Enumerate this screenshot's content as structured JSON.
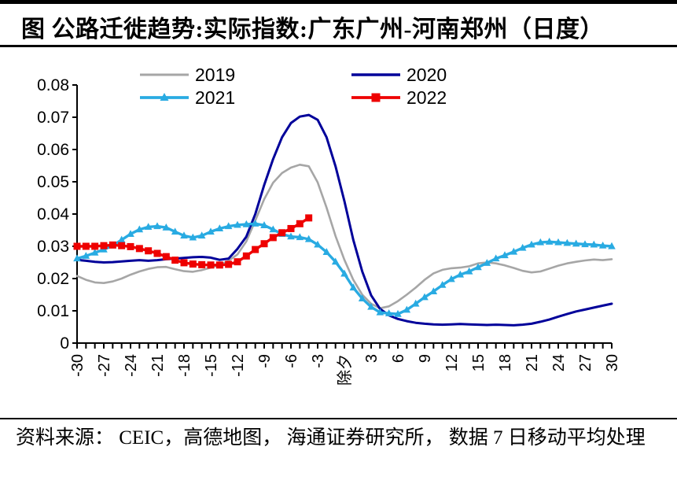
{
  "title": "图 公路迁徙趋势:实际指数:广东广州-河南郑州（日度）",
  "source": "资料来源： CEIC，高德地图， 海通证券研究所， 数据 7 日移动平均处理",
  "chart_data": {
    "type": "line",
    "title": "图 公路迁徙趋势:实际指数:广东广州-河南郑州（日度）",
    "grid": false,
    "legend_position": "top-inside-two-columns",
    "ylim": [
      0,
      0.08
    ],
    "y_ticks": [
      {
        "value": 0,
        "label": "0"
      },
      {
        "value": 0.01,
        "label": "0.01"
      },
      {
        "value": 0.02,
        "label": "0.02"
      },
      {
        "value": 0.03,
        "label": "0.03"
      },
      {
        "value": 0.04,
        "label": "0.04"
      },
      {
        "value": 0.05,
        "label": "0.05"
      },
      {
        "value": 0.06,
        "label": "0.06"
      },
      {
        "value": 0.07,
        "label": "0.07"
      },
      {
        "value": 0.08,
        "label": "0.08"
      }
    ],
    "x_tick_step": 1,
    "x_zero_label": "除夕",
    "x_labels": [
      {
        "value": -30,
        "text": "-30"
      },
      {
        "value": -27,
        "text": "-27"
      },
      {
        "value": -24,
        "text": "-24"
      },
      {
        "value": -21,
        "text": "-21"
      },
      {
        "value": -18,
        "text": "-18"
      },
      {
        "value": -15,
        "text": "-15"
      },
      {
        "value": -12,
        "text": "-12"
      },
      {
        "value": -9,
        "text": "-9"
      },
      {
        "value": -6,
        "text": "-6"
      },
      {
        "value": -3,
        "text": "-3"
      },
      {
        "value": 0,
        "text": "除夕"
      },
      {
        "value": 3,
        "text": "3"
      },
      {
        "value": 6,
        "text": "6"
      },
      {
        "value": 9,
        "text": "9"
      },
      {
        "value": 12,
        "text": "12"
      },
      {
        "value": 15,
        "text": "15"
      },
      {
        "value": 18,
        "text": "18"
      },
      {
        "value": 21,
        "text": "21"
      },
      {
        "value": 24,
        "text": "24"
      },
      {
        "value": 27,
        "text": "27"
      },
      {
        "value": 30,
        "text": "30"
      }
    ],
    "x": [
      -30,
      -29,
      -28,
      -27,
      -26,
      -25,
      -24,
      -23,
      -22,
      -21,
      -20,
      -19,
      -18,
      -17,
      -16,
      -15,
      -14,
      -13,
      -12,
      -11,
      -10,
      -9,
      -8,
      -7,
      -6,
      -5,
      -4,
      -3,
      -2,
      -1,
      0,
      1,
      2,
      3,
      4,
      5,
      6,
      7,
      8,
      9,
      10,
      11,
      12,
      13,
      14,
      15,
      16,
      17,
      18,
      19,
      20,
      21,
      22,
      23,
      24,
      25,
      26,
      27,
      28,
      29,
      30
    ],
    "series": [
      {
        "name": "2019",
        "color": "#a6a6a6",
        "marker": "none",
        "line_width": 2.6,
        "values": [
          0.0208,
          0.0196,
          0.0188,
          0.0186,
          0.0191,
          0.02,
          0.0212,
          0.0222,
          0.023,
          0.0235,
          0.0236,
          0.0229,
          0.0223,
          0.0221,
          0.0226,
          0.0234,
          0.0243,
          0.0255,
          0.0275,
          0.0315,
          0.038,
          0.0446,
          0.0497,
          0.0527,
          0.0544,
          0.0553,
          0.0548,
          0.0498,
          0.042,
          0.0332,
          0.0258,
          0.0196,
          0.015,
          0.0122,
          0.0108,
          0.0114,
          0.013,
          0.015,
          0.0172,
          0.0196,
          0.0216,
          0.0227,
          0.0232,
          0.0234,
          0.0238,
          0.0247,
          0.025,
          0.0247,
          0.0241,
          0.0233,
          0.0224,
          0.0219,
          0.0222,
          0.0231,
          0.024,
          0.0247,
          0.0252,
          0.0256,
          0.0259,
          0.0257,
          0.026
        ]
      },
      {
        "name": "2020",
        "color": "#00009a",
        "marker": "none",
        "line_width": 3,
        "values": [
          0.0258,
          0.0255,
          0.0252,
          0.025,
          0.0251,
          0.0253,
          0.0255,
          0.0257,
          0.0255,
          0.0257,
          0.026,
          0.0262,
          0.0264,
          0.0266,
          0.0267,
          0.0265,
          0.0258,
          0.0262,
          0.0292,
          0.033,
          0.04,
          0.049,
          0.057,
          0.0638,
          0.0682,
          0.0702,
          0.0707,
          0.0692,
          0.0638,
          0.0548,
          0.044,
          0.032,
          0.0222,
          0.0148,
          0.0106,
          0.0086,
          0.0075,
          0.0068,
          0.0063,
          0.006,
          0.0058,
          0.0057,
          0.0058,
          0.0059,
          0.0058,
          0.0057,
          0.0056,
          0.0057,
          0.0056,
          0.0055,
          0.0057,
          0.006,
          0.0066,
          0.0073,
          0.0082,
          0.009,
          0.0098,
          0.0104,
          0.011,
          0.0116,
          0.0122
        ]
      },
      {
        "name": "2021",
        "color": "#29abe2",
        "marker": "triangle",
        "line_width": 3.4,
        "values": [
          0.0262,
          0.027,
          0.028,
          0.029,
          0.0302,
          0.032,
          0.0338,
          0.0352,
          0.036,
          0.0362,
          0.0358,
          0.0345,
          0.0333,
          0.0327,
          0.0333,
          0.0345,
          0.0355,
          0.0362,
          0.0366,
          0.0368,
          0.037,
          0.0365,
          0.0352,
          0.0338,
          0.033,
          0.0328,
          0.0322,
          0.0305,
          0.0282,
          0.0252,
          0.0215,
          0.0172,
          0.0138,
          0.0112,
          0.0095,
          0.0092,
          0.009,
          0.0103,
          0.0122,
          0.0142,
          0.016,
          0.018,
          0.0198,
          0.0212,
          0.0222,
          0.0235,
          0.0248,
          0.0262,
          0.0272,
          0.0283,
          0.0295,
          0.0305,
          0.0312,
          0.0314,
          0.0312,
          0.031,
          0.0308,
          0.0306,
          0.0305,
          0.0302,
          0.03
        ]
      },
      {
        "name": "2022",
        "color": "#ee0000",
        "marker": "square",
        "line_width": 3.4,
        "values": [
          0.03,
          0.03,
          0.03,
          0.0302,
          0.0304,
          0.0302,
          0.0299,
          0.0293,
          0.0286,
          0.0278,
          0.0268,
          0.0257,
          0.0249,
          0.0245,
          0.0243,
          0.0242,
          0.0242,
          0.0244,
          0.0252,
          0.027,
          0.029,
          0.0308,
          0.0327,
          0.0342,
          0.0355,
          0.037,
          0.0388
        ]
      }
    ]
  }
}
